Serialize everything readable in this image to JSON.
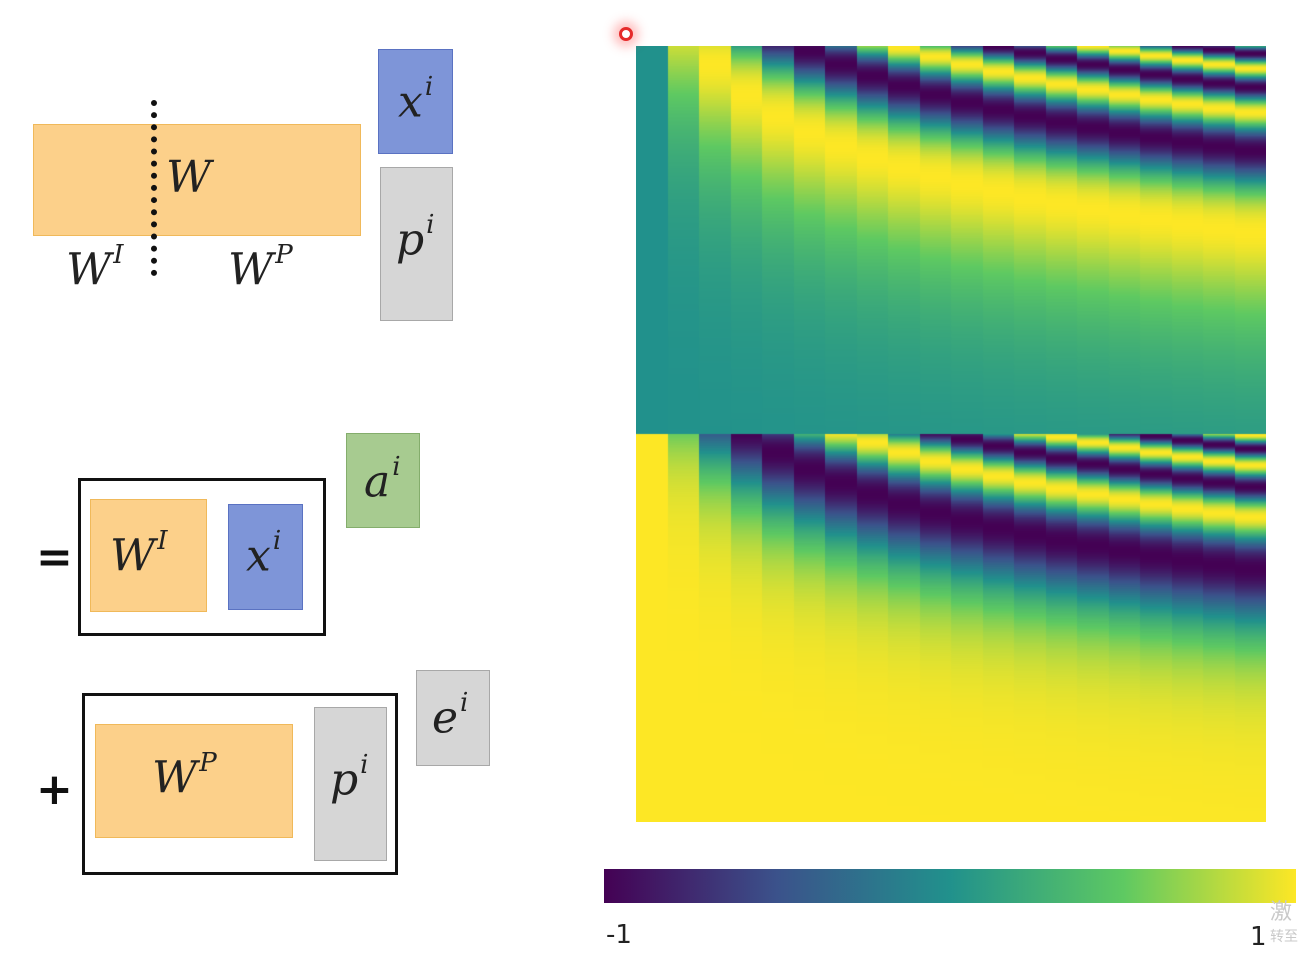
{
  "top": {
    "w_label": "W",
    "w_i_base": "W",
    "w_i_sup": "I",
    "w_p_base": "W",
    "w_p_sup": "P",
    "x_base": "x",
    "x_sup": "i",
    "p_base": "p",
    "p_sup": "i"
  },
  "bottom": {
    "equals": "=",
    "plus": "+",
    "wi_base": "W",
    "wi_sup": "I",
    "xi_base": "x",
    "xi_sup": "i",
    "a_base": "a",
    "a_sup": "i",
    "wp_base": "W",
    "wp_sup": "P",
    "pi_base": "p",
    "pi_sup": "i",
    "e_base": "e",
    "e_sup": "i"
  },
  "colorbar": {
    "min_label": "-1",
    "max_label": "1",
    "stops": [
      "#440154",
      "#3b528b",
      "#21918c",
      "#5ec962",
      "#fde725"
    ]
  },
  "watermark": {
    "line1": "激",
    "line2": "转至"
  }
}
